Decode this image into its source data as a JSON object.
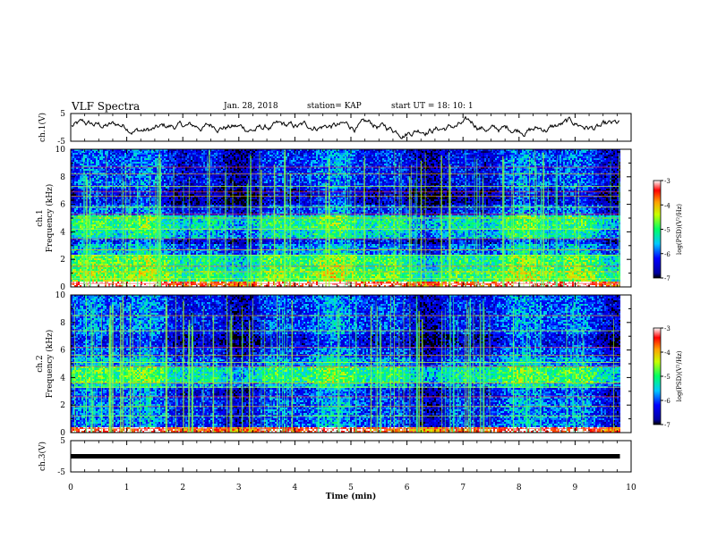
{
  "header": {
    "title": "VLF Spectra",
    "date": "Jan. 28, 2018",
    "station": "station= KAP",
    "start": "start  UT =   18: 10: 1"
  },
  "chart_data": [
    {
      "type": "line",
      "panel": "ch1-waveform",
      "ylabel": "ch.1(V)",
      "ylim": [
        -5,
        5
      ],
      "yticks": [
        "5",
        "-5"
      ],
      "xlim": [
        0,
        10
      ],
      "color": "#000000"
    },
    {
      "type": "heatmap",
      "panel": "ch1-spectrogram",
      "ylabel_line1": "ch.1",
      "ylabel_line2": "Frequency (kHz)",
      "ylim": [
        0,
        10
      ],
      "yticks": [
        "0",
        "2",
        "4",
        "6",
        "8",
        "10"
      ],
      "xlim": [
        0,
        10
      ],
      "data_end_min": 9.8,
      "colorbar": {
        "label": "log(PSD)(V²/Hz)",
        "range": [
          -7,
          -3
        ],
        "ticks": [
          "-3",
          "-4",
          "-5",
          "-6",
          "-7"
        ]
      },
      "bands": [
        {
          "from": 0,
          "to": 0.35,
          "level": 0.95
        },
        {
          "from": 0.35,
          "to": 1.2,
          "level": 0.55
        },
        {
          "from": 1.2,
          "to": 2.3,
          "level": 0.5
        },
        {
          "from": 2.3,
          "to": 3.1,
          "level": 0.3
        },
        {
          "from": 3.1,
          "to": 3.5,
          "level": 0.18
        },
        {
          "from": 3.5,
          "to": 4.2,
          "level": 0.38
        },
        {
          "from": 4.2,
          "to": 5.2,
          "level": 0.45
        },
        {
          "from": 5.2,
          "to": 6.0,
          "level": 0.22
        },
        {
          "from": 6.0,
          "to": 7.2,
          "level": 0.12
        },
        {
          "from": 7.2,
          "to": 10,
          "level": 0.2
        }
      ],
      "lines_khz": [
        0.25,
        0.6,
        1.1,
        1.5,
        2.3,
        2.7,
        3.5,
        4.2,
        5.0,
        5.3,
        5.8,
        6.6,
        6.9,
        7.3,
        8.2,
        8.7
      ]
    },
    {
      "type": "heatmap",
      "panel": "ch2-spectrogram",
      "ylabel_line1": "ch.2",
      "ylabel_line2": "Frequency (kHz)",
      "ylim": [
        0,
        10
      ],
      "yticks": [
        "0",
        "2",
        "4",
        "6",
        "8",
        "10"
      ],
      "xlim": [
        0,
        10
      ],
      "data_end_min": 9.8,
      "colorbar": {
        "label": "log(PSD)(V²/Hz)",
        "range": [
          -7,
          -3
        ],
        "ticks": [
          "-3",
          "-4",
          "-5",
          "-6",
          "-7"
        ]
      },
      "bands": [
        {
          "from": 0,
          "to": 0.4,
          "level": 0.9
        },
        {
          "from": 0.4,
          "to": 2.6,
          "level": 0.24
        },
        {
          "from": 2.6,
          "to": 3.2,
          "level": 0.2
        },
        {
          "from": 3.2,
          "to": 3.6,
          "level": 0.35
        },
        {
          "from": 3.6,
          "to": 4.8,
          "level": 0.47
        },
        {
          "from": 4.8,
          "to": 5.4,
          "level": 0.3
        },
        {
          "from": 5.4,
          "to": 6.2,
          "level": 0.22
        },
        {
          "from": 6.2,
          "to": 7.2,
          "level": 0.14
        },
        {
          "from": 7.2,
          "to": 10,
          "level": 0.22
        }
      ],
      "lines_khz": [
        0.3,
        1.2,
        1.9,
        2.6,
        3.3,
        3.6,
        4.8,
        5.1,
        5.6,
        6.2,
        7.4,
        8.5
      ]
    },
    {
      "type": "line",
      "panel": "ch3-waveform",
      "ylabel": "ch.3(V)",
      "ylim": [
        -5,
        5
      ],
      "yticks": [
        "5",
        "-5"
      ],
      "xlim": [
        0,
        10
      ],
      "constant_value": 0,
      "color": "#000000"
    }
  ],
  "xaxis": {
    "label": "Time (min)",
    "ticks": [
      "0",
      "1",
      "2",
      "3",
      "4",
      "5",
      "6",
      "7",
      "8",
      "9",
      "10"
    ],
    "range": [
      0,
      10
    ]
  }
}
